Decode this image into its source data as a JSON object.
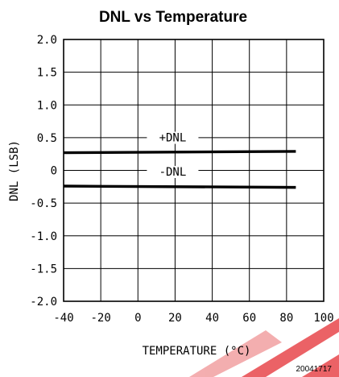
{
  "chart_data": {
    "type": "line",
    "title": "DNL vs Temperature",
    "xlabel": "TEMPERATURE (°C)",
    "ylabel": "DNL (LSB)",
    "xlim": [
      -40,
      100
    ],
    "ylim": [
      -2.0,
      2.0
    ],
    "x_ticks": [
      -40,
      -20,
      0,
      20,
      40,
      60,
      80,
      100
    ],
    "x_tick_labels": [
      "-40",
      "-20",
      "0",
      "20",
      "40",
      "60",
      "80",
      "100"
    ],
    "y_ticks": [
      2.0,
      1.5,
      1.0,
      0.5,
      0,
      -0.5,
      -1.0,
      -1.5,
      -2.0
    ],
    "y_tick_labels": [
      "2.0",
      "1.5",
      "1.0",
      "0.5",
      "0",
      "-0.5",
      "-1.0",
      "-1.5",
      "-2.0"
    ],
    "grid": true,
    "series": [
      {
        "name": "+DNL",
        "x": [
          -40,
          85
        ],
        "y": [
          0.27,
          0.29
        ]
      },
      {
        "name": "-DNL",
        "x": [
          -40,
          85
        ],
        "y": [
          -0.24,
          -0.26
        ]
      }
    ],
    "figure_id": "20041717",
    "colors": {
      "line": "#000000",
      "grid": "#000000",
      "watermark": "#e8474c"
    }
  }
}
